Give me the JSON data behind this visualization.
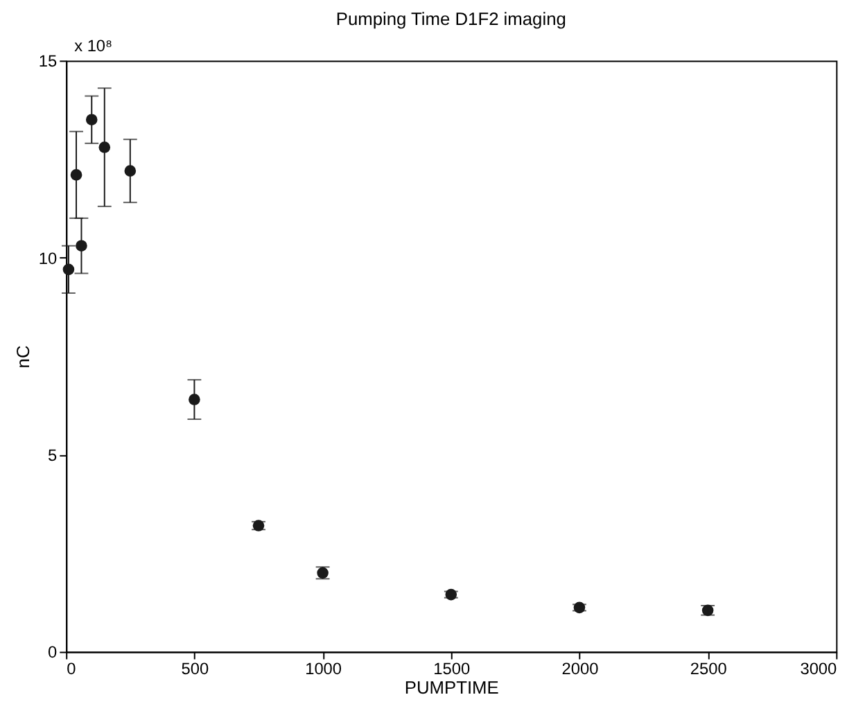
{
  "chart_data": {
    "type": "scatter",
    "title": "Pumping Time D1F2 imaging",
    "xlabel": "PUMPTIME",
    "ylabel": "nC",
    "annotations": [
      "x 10⁸"
    ],
    "x": [
      10,
      40,
      60,
      100,
      150,
      250,
      500,
      750,
      1000,
      1500,
      2000,
      2500
    ],
    "series": [
      {
        "color": "#1a1a1a",
        "values": [
          9.7,
          12.1,
          10.3,
          13.5,
          12.8,
          12.2,
          6.4,
          3.2,
          2.0,
          1.45,
          1.12,
          1.05
        ],
        "errors": [
          0.6,
          1.1,
          0.7,
          0.6,
          1.5,
          0.8,
          0.5,
          0.1,
          0.15,
          0.08,
          0.08,
          0.12
        ]
      }
    ],
    "marker": "circle",
    "grid": false,
    "xlim": [
      0,
      3000
    ],
    "xticks": [
      0,
      500,
      1000,
      1500,
      2000,
      2500,
      3000
    ],
    "ylim": [
      0,
      15
    ],
    "yticks": [
      0,
      5,
      10,
      15
    ]
  }
}
